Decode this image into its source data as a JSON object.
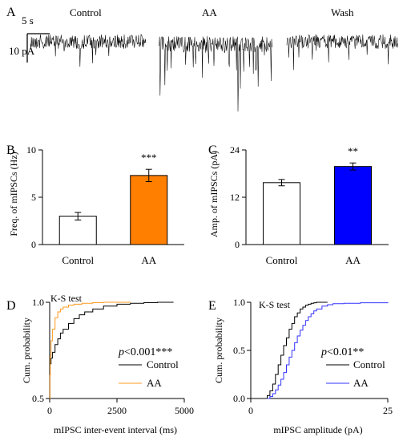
{
  "panel_a": {
    "letter": "A",
    "scale_time": "5 s",
    "scale_current": "10 pA",
    "conditions": [
      "Control",
      "AA",
      "Wash"
    ]
  },
  "chart_data": [
    {
      "panel": "B",
      "type": "bar",
      "categories": [
        "Control",
        "AA"
      ],
      "values": [
        3.0,
        7.3
      ],
      "errors": [
        0.4,
        0.65
      ],
      "colors": [
        "#ffffff",
        "#ff7f00"
      ],
      "significance": [
        "",
        "***"
      ],
      "ylabel": "Freq. of mIPSCs (Hz)",
      "ylim": [
        0,
        10
      ],
      "yticks": [
        0,
        5,
        10
      ]
    },
    {
      "panel": "C",
      "type": "bar",
      "categories": [
        "Control",
        "AA"
      ],
      "values": [
        15.7,
        19.8
      ],
      "errors": [
        0.8,
        0.9
      ],
      "colors": [
        "#ffffff",
        "#0000ff"
      ],
      "significance": [
        "",
        "**"
      ],
      "ylabel": "Amp. of mIPSCs (pA)",
      "ylim": [
        0,
        24
      ],
      "yticks": [
        0,
        12,
        24
      ]
    },
    {
      "panel": "D",
      "type": "line",
      "xlabel": "mIPSC inter-event interval (ms)",
      "ylabel": "Cum. probability",
      "xlim": [
        0,
        5000
      ],
      "ylim": [
        0.5,
        1.0
      ],
      "xticks": [
        0,
        2500,
        5000
      ],
      "yticks": [
        0.5,
        1.0
      ],
      "annotation_test": "K-S test",
      "annotation_p_symbol": "p",
      "annotation_p_rest": "<0.001***",
      "series": [
        {
          "name": "Control",
          "color": "#000000",
          "x": [
            0,
            10,
            50,
            100,
            200,
            300,
            400,
            500,
            700,
            900,
            1100,
            1300,
            1600,
            2000,
            2500,
            3000,
            3500,
            4000,
            4600
          ],
          "y": [
            0.5,
            0.68,
            0.71,
            0.74,
            0.78,
            0.81,
            0.84,
            0.86,
            0.89,
            0.915,
            0.935,
            0.95,
            0.965,
            0.98,
            0.99,
            0.995,
            0.998,
            1.0,
            1.0
          ]
        },
        {
          "name": "AA",
          "color": "#ff9a1f",
          "x": [
            0,
            5,
            20,
            50,
            100,
            200,
            300,
            400,
            500,
            700,
            900,
            1200,
            1600,
            2000,
            2500,
            3000
          ],
          "y": [
            0.5,
            0.62,
            0.72,
            0.8,
            0.86,
            0.92,
            0.95,
            0.965,
            0.975,
            0.985,
            0.99,
            0.995,
            0.998,
            1.0,
            1.0,
            1.0
          ]
        }
      ]
    },
    {
      "panel": "E",
      "type": "line",
      "xlabel": "mIPSC amplitude (pA)",
      "ylabel": "Cum. probability",
      "xlim": [
        0,
        25
      ],
      "ylim": [
        0,
        1.0
      ],
      "xticks": [
        0,
        25
      ],
      "yticks": [
        0.0,
        0.5,
        1.0
      ],
      "annotation_test": "K-S test",
      "annotation_p_symbol": "p",
      "annotation_p_rest": "<0.01**",
      "series": [
        {
          "name": "Control",
          "color": "#000000",
          "x": [
            2.5,
            3,
            3.5,
            4,
            4.5,
            5,
            5.5,
            6,
            6.5,
            7,
            7.5,
            8,
            8.5,
            9,
            9.5,
            10,
            10.5,
            11,
            11.5,
            12,
            13,
            14
          ],
          "y": [
            0,
            0.03,
            0.08,
            0.15,
            0.25,
            0.35,
            0.45,
            0.55,
            0.63,
            0.72,
            0.78,
            0.85,
            0.89,
            0.93,
            0.95,
            0.97,
            0.98,
            0.99,
            0.995,
            1.0,
            1.0,
            1.0
          ]
        },
        {
          "name": "AA",
          "color": "#3333ff",
          "x": [
            3,
            3.5,
            4,
            4.5,
            5,
            5.5,
            6,
            6.5,
            7,
            7.5,
            8,
            8.5,
            9,
            9.5,
            10,
            10.5,
            11,
            11.5,
            12,
            13,
            14,
            15,
            17,
            20,
            25
          ],
          "y": [
            0,
            0.02,
            0.05,
            0.09,
            0.14,
            0.2,
            0.27,
            0.35,
            0.43,
            0.5,
            0.58,
            0.65,
            0.71,
            0.76,
            0.81,
            0.85,
            0.88,
            0.91,
            0.93,
            0.96,
            0.975,
            0.985,
            0.99,
            0.995,
            1.0
          ]
        }
      ]
    }
  ]
}
